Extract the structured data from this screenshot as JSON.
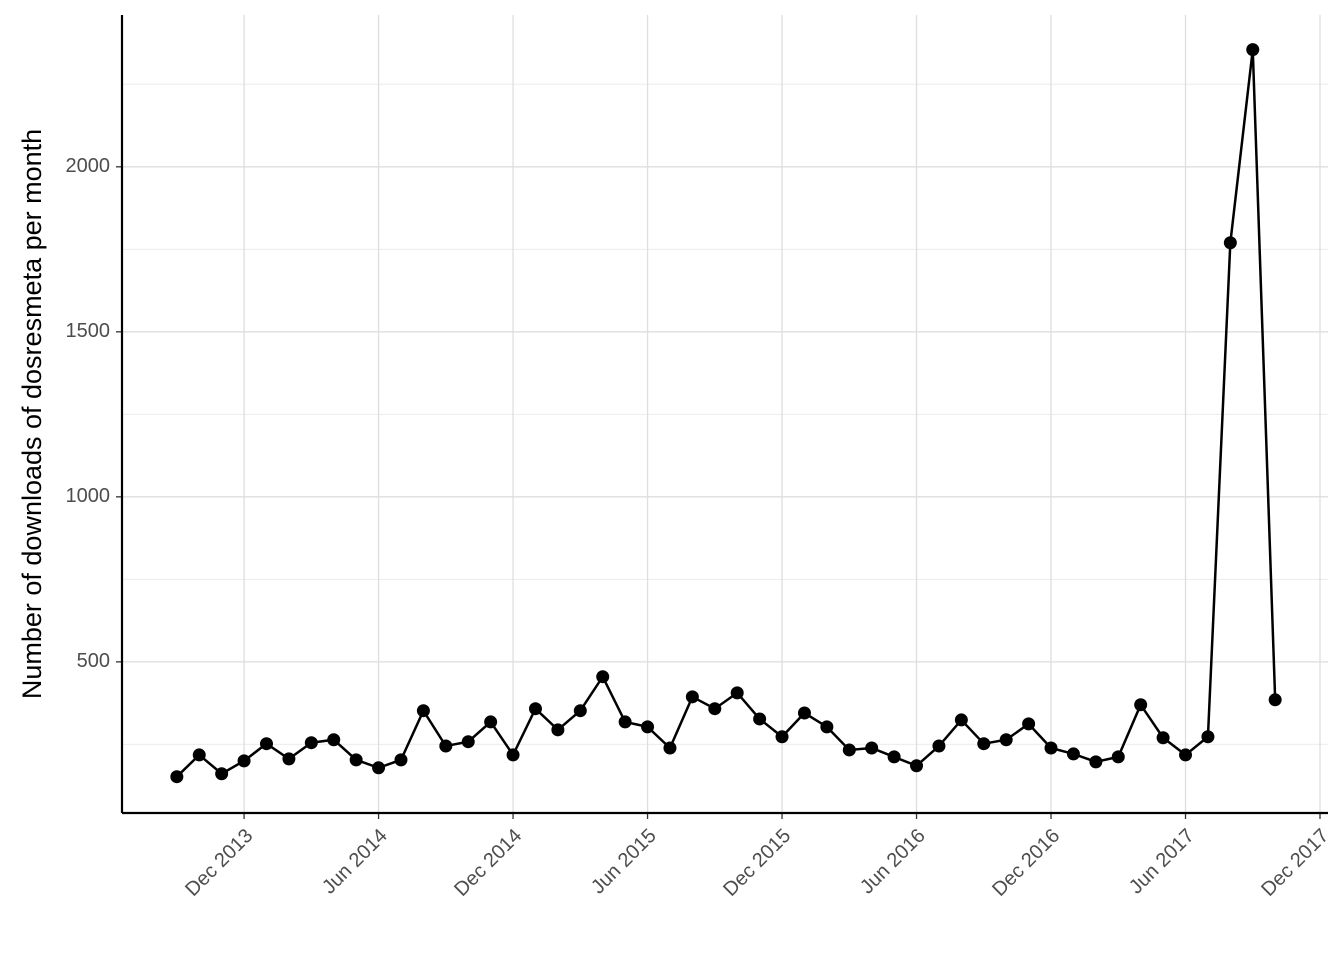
{
  "chart_data": {
    "type": "line",
    "ylabel": "Number of downloads of dosresmeta per month",
    "x": [
      "2013-09",
      "2013-10",
      "2013-11",
      "2013-12",
      "2014-01",
      "2014-02",
      "2014-03",
      "2014-04",
      "2014-05",
      "2014-06",
      "2014-07",
      "2014-08",
      "2014-09",
      "2014-10",
      "2014-11",
      "2014-12",
      "2015-01",
      "2015-02",
      "2015-03",
      "2015-04",
      "2015-05",
      "2015-06",
      "2015-07",
      "2015-08",
      "2015-09",
      "2015-10",
      "2015-11",
      "2015-12",
      "2016-01",
      "2016-02",
      "2016-03",
      "2016-04",
      "2016-05",
      "2016-06",
      "2016-07",
      "2016-08",
      "2016-09",
      "2016-10",
      "2016-11",
      "2016-12",
      "2017-01",
      "2017-02",
      "2017-03",
      "2017-04",
      "2017-05",
      "2017-06",
      "2017-07",
      "2017-08",
      "2017-09",
      "2017-10"
    ],
    "values": [
      152,
      218,
      161,
      200,
      252,
      206,
      255,
      264,
      203,
      179,
      203,
      352,
      245,
      258,
      318,
      218,
      358,
      294,
      352,
      455,
      318,
      303,
      239,
      394,
      358,
      406,
      327,
      273,
      345,
      303,
      233,
      239,
      212,
      185,
      245,
      324,
      252,
      264,
      312,
      239,
      221,
      197,
      212,
      370,
      270,
      218,
      273,
      1770,
      2355,
      385
    ],
    "color": "#000000",
    "xlim": [
      "2013-07",
      "2017-12"
    ],
    "xticks": [
      {
        "value": "2013-12",
        "label": "Dec 2013"
      },
      {
        "value": "2014-06",
        "label": "Jun 2014"
      },
      {
        "value": "2014-12",
        "label": "Dec 2014"
      },
      {
        "value": "2015-06",
        "label": "Jun 2015"
      },
      {
        "value": "2015-12",
        "label": "Dec 2015"
      },
      {
        "value": "2016-06",
        "label": "Jun 2016"
      },
      {
        "value": "2016-12",
        "label": "Dec 2016"
      },
      {
        "value": "2017-06",
        "label": "Jun 2017"
      },
      {
        "value": "2017-12",
        "label": "Dec 2017"
      }
    ],
    "ylim": [
      42,
      2460
    ],
    "yticks": [
      500,
      1000,
      1500,
      2000
    ],
    "yminorticks": [
      250,
      750,
      1250,
      1750,
      2250
    ],
    "grid": true
  }
}
